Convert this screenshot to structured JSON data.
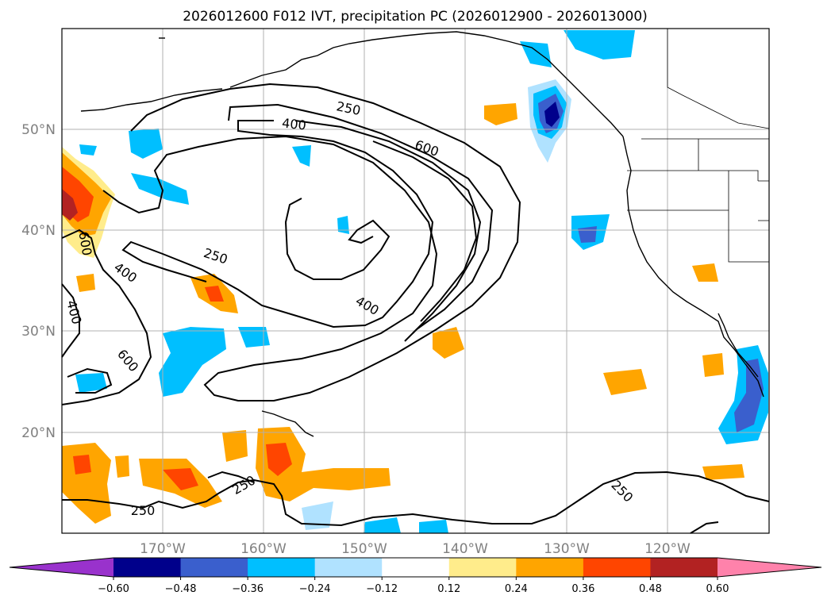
{
  "title": "2026012600 F012 IVT, precipitation PC (2026012900 - 2026013000)",
  "axes": {
    "lon_labels": [
      "170°W",
      "160°W",
      "150°W",
      "140°W",
      "130°W",
      "120°W"
    ],
    "lat_labels": [
      "50°N",
      "40°N",
      "30°N",
      "20°N"
    ]
  },
  "colorbar": {
    "ticks": [
      "−0.60",
      "−0.48",
      "−0.36",
      "−0.24",
      "−0.12",
      "0.12",
      "0.24",
      "0.36",
      "0.48",
      "0.60"
    ],
    "colors": [
      "#9932cc",
      "#00008b",
      "#3a5fcd",
      "#00bfff",
      "#b0e2ff",
      "#ffffff",
      "#ffec8b",
      "#ffa500",
      "#ff4500",
      "#b22222",
      "#ff82ab"
    ]
  },
  "contour_labels": [
    "250",
    "400",
    "600",
    "600",
    "400",
    "400",
    "250",
    "400",
    "600",
    "250",
    "250",
    "250"
  ],
  "chart_data": {
    "type": "map",
    "title": "2026012600 F012 IVT, precipitation PC (2026012900 - 2026013000)",
    "extent": {
      "lon": [
        -180,
        -110
      ],
      "lat": [
        10,
        60
      ]
    },
    "variables": [
      "IVT contours (250, 400, 600)",
      "precipitation PC (shaded)"
    ],
    "contour_levels": [
      250,
      400,
      600
    ],
    "colorbar_levels": [
      -0.6,
      -0.48,
      -0.36,
      -0.24,
      -0.12,
      0.12,
      0.24,
      0.36,
      0.48,
      0.6
    ]
  }
}
